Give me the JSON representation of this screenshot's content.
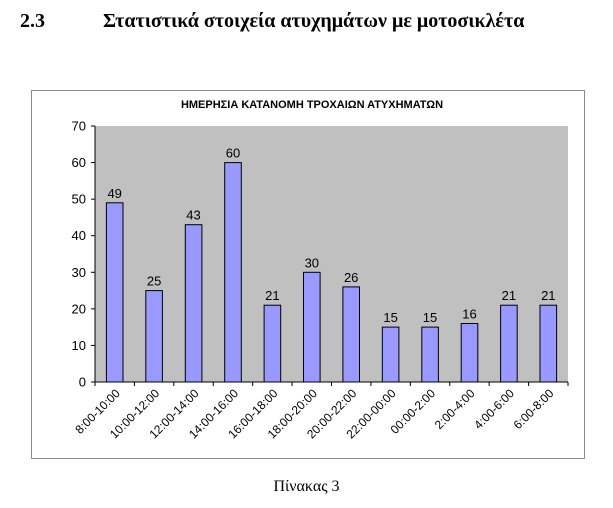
{
  "heading": {
    "number": "2.3",
    "title": "Στατιστικά στοιχεία ατυχημάτων με μοτοσικλέτα"
  },
  "caption": "Πίνακας 3",
  "colors": {
    "bar_fill": "#9999ff",
    "bar_stroke": "#000000",
    "plot_background": "#c0c0c0",
    "axis": "#000000"
  },
  "chart_data": {
    "type": "bar",
    "title": "ΗΜΕΡΗΣΙΑ ΚΑΤΑΝΟΜΗ ΤΡΟΧΑΙΩΝ ΑΤΥΧΗΜΑΤΩΝ",
    "categories": [
      "8:00-10:00",
      "10:00-12:00",
      "12:00-14:00",
      "14:00-16:00",
      "16:00-18:00",
      "18:00-20:00",
      "20:00-22:00",
      "22:00-00:00",
      "00:00-2:00",
      "2:00-4:00",
      "4:00-6:00",
      "6:00-8:00"
    ],
    "values": [
      49,
      25,
      43,
      60,
      21,
      30,
      26,
      15,
      15,
      16,
      21,
      21
    ],
    "data_labels": [
      "49",
      "25",
      "43",
      "60",
      "21",
      "30",
      "26",
      "15",
      "15",
      "16",
      "21",
      "21"
    ],
    "yticks": [
      "0",
      "10",
      "20",
      "30",
      "40",
      "50",
      "60",
      "70"
    ],
    "ylim": [
      0,
      70
    ],
    "xlabel": "",
    "ylabel": "",
    "grid": false,
    "legend": "none"
  }
}
